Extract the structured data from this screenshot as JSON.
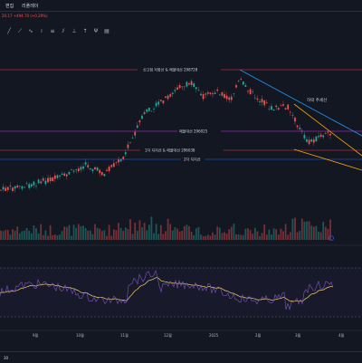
{
  "header": {
    "tab_edit": "편집",
    "tab_replay": "리플레이"
  },
  "price_readout": {
    "change": "20.17 +494.70 (+0.29%)"
  },
  "annotations": {
    "new_high": "신고점 저항선 & 매물대선 298728",
    "mid": "매물대선 296025",
    "low": "1차 지지선 & 매물대선 296038",
    "second": "2차 지지선",
    "downtrend": "하락 추세선"
  },
  "time_axis": [
    "9월",
    "10월",
    "11월",
    "12월",
    "2025",
    "2월",
    "3월",
    "4월"
  ],
  "colors": {
    "up": "#26a69a",
    "down": "#ef5350",
    "level_red": "#f23645",
    "level_purple": "#9c27b0",
    "level_blue": "#2962ff",
    "trend_orange": "#f7a600",
    "trend_blue": "#2196f3",
    "rsi_line": "#7e57c2",
    "rsi_signal": "#f5d36c"
  },
  "footer": {
    "label": "30"
  }
}
